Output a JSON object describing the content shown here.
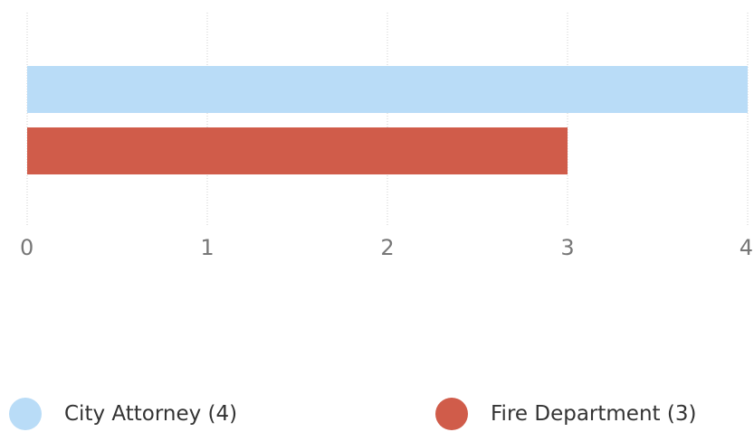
{
  "chart_data": {
    "type": "bar",
    "orientation": "horizontal",
    "categories": [
      "City Attorney",
      "Fire Department"
    ],
    "values": [
      4,
      3
    ],
    "colors": [
      "#b9dcf7",
      "#d05c4a"
    ],
    "xlim": [
      0,
      4
    ],
    "xticks": [
      "0",
      "1",
      "2",
      "3",
      "4"
    ],
    "grid": true,
    "legend_position": "bottom",
    "title": "",
    "xlabel": "",
    "ylabel": ""
  },
  "legend": {
    "items": [
      {
        "label": "City Attorney (4)",
        "color": "#b9dcf7"
      },
      {
        "label": "Fire Department (3)",
        "color": "#d05c4a"
      }
    ]
  }
}
